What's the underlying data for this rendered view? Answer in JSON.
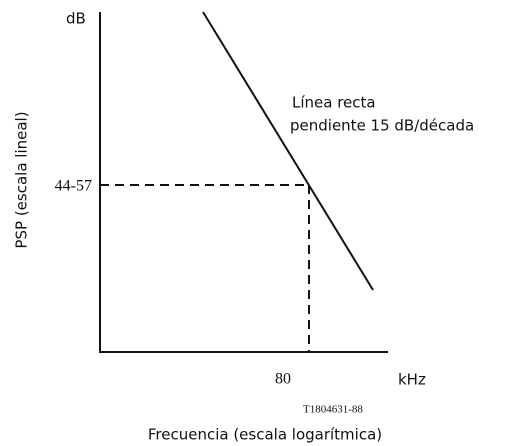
{
  "y_axis": {
    "unit": "dB",
    "label": "PSP (escala lineal)",
    "marker": "44-57"
  },
  "x_axis": {
    "unit": "kHz",
    "label": "Frecuencia (escala logarítmica)",
    "marker": "80"
  },
  "annotation": {
    "line1": "Línea recta",
    "line2": "pendiente 15 dB/década"
  },
  "figure_id": "T1804631-88"
}
